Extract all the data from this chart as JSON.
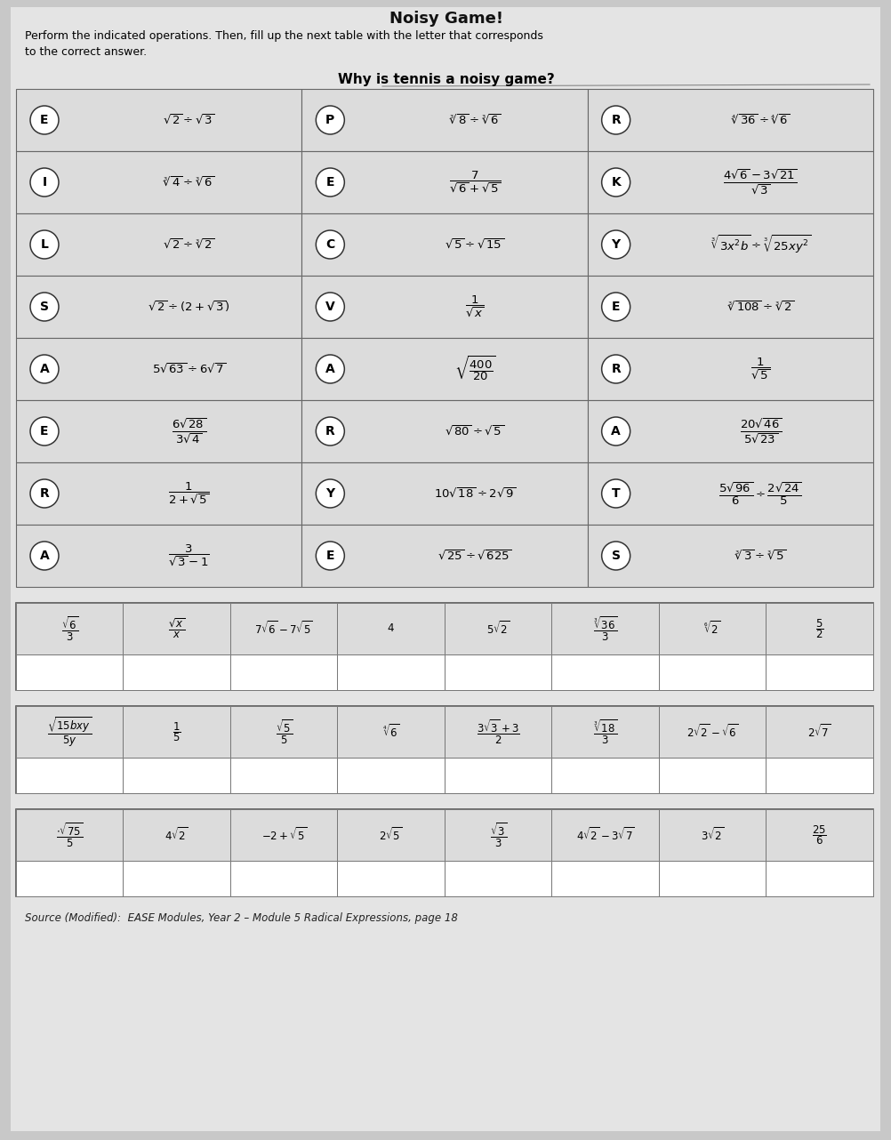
{
  "bg_color": "#c8c8c8",
  "paper_color": "#e4e4e4",
  "title": "Noisy Game!",
  "instruction1": "Perform the indicated operations. Then, fill up the next table with the letter that corresponds",
  "instruction2": "to the correct answer.",
  "question": "Why is tennis a noisy game?",
  "source": "Source (Modified):  EASE Modules, Year 2 – Module 5 Radical Expressions, page 18",
  "rows": [
    [
      {
        "letter": "E",
        "expr": "$\\sqrt{2} \\div \\sqrt{3}$"
      },
      {
        "letter": "P",
        "expr": "$\\sqrt[3]{8} \\div \\sqrt[3]{6}$"
      },
      {
        "letter": "R",
        "expr": "$\\sqrt[4]{36} \\div \\sqrt[4]{6}$"
      }
    ],
    [
      {
        "letter": "I",
        "expr": "$\\sqrt[3]{4} \\div \\sqrt[3]{6}$"
      },
      {
        "letter": "E",
        "expr": "$\\dfrac{7}{\\sqrt{6}+\\sqrt{5}}$"
      },
      {
        "letter": "K",
        "expr": "$\\dfrac{4\\sqrt{6}-3\\sqrt{21}}{\\sqrt{3}}$"
      }
    ],
    [
      {
        "letter": "L",
        "expr": "$\\sqrt{2} \\div \\sqrt[3]{2}$"
      },
      {
        "letter": "C",
        "expr": "$\\sqrt{5} \\div \\sqrt{15}$"
      },
      {
        "letter": "Y",
        "expr": "$\\sqrt[3]{3x^2b} \\div \\sqrt[3]{25xy^2}$"
      }
    ],
    [
      {
        "letter": "S",
        "expr": "$\\sqrt{2} \\div (2+\\sqrt{3})$"
      },
      {
        "letter": "V",
        "expr": "$\\dfrac{1}{\\sqrt{x}}$"
      },
      {
        "letter": "E",
        "expr": "$\\sqrt[3]{108} \\div \\sqrt[3]{2}$"
      }
    ],
    [
      {
        "letter": "A",
        "expr": "$5\\sqrt{63} \\div 6\\sqrt{7}$"
      },
      {
        "letter": "A",
        "expr": "$\\sqrt{\\dfrac{400}{20}}$"
      },
      {
        "letter": "R",
        "expr": "$\\dfrac{1}{\\sqrt{5}}$"
      }
    ],
    [
      {
        "letter": "E",
        "expr": "$\\dfrac{6\\sqrt{28}}{3\\sqrt{4}}$"
      },
      {
        "letter": "R",
        "expr": "$\\sqrt{80} \\div \\sqrt{5}$"
      },
      {
        "letter": "A",
        "expr": "$\\dfrac{20\\sqrt{46}}{5\\sqrt{23}}$"
      }
    ],
    [
      {
        "letter": "R",
        "expr": "$\\dfrac{1}{2+\\sqrt{5}}$"
      },
      {
        "letter": "Y",
        "expr": "$10\\sqrt{18} \\div 2\\sqrt{9}$"
      },
      {
        "letter": "T",
        "expr": "$\\dfrac{5\\sqrt{96}}{6} \\div \\dfrac{2\\sqrt{24}}{5}$"
      }
    ],
    [
      {
        "letter": "A",
        "expr": "$\\dfrac{3}{\\sqrt{3}-1}$"
      },
      {
        "letter": "E",
        "expr": "$\\sqrt{25} \\div \\sqrt{625}$"
      },
      {
        "letter": "S",
        "expr": "$\\sqrt[3]{3} \\div \\sqrt[3]{5}$"
      }
    ]
  ],
  "ans1": [
    "$\\dfrac{\\sqrt{6}}{3}$",
    "$\\dfrac{\\sqrt{x}}{x}$",
    "$7\\sqrt{6}-7\\sqrt{5}$",
    "$4$",
    "$5\\sqrt{2}$",
    "$\\dfrac{\\sqrt[3]{36}}{3}$",
    "$\\sqrt[6]{2}$",
    "$\\dfrac{5}{2}$"
  ],
  "ans2": [
    "$\\dfrac{\\sqrt{15bxy}}{5y}$",
    "$\\dfrac{1}{5}$",
    "$\\dfrac{\\sqrt{5}}{5}$",
    "$\\sqrt[4]{6}$",
    "$\\dfrac{3\\sqrt{3}+3}{2}$",
    "$\\dfrac{\\sqrt[3]{18}}{3}$",
    "$2\\sqrt{2}-\\sqrt{6}$",
    "$2\\sqrt{7}$"
  ],
  "ans3": [
    "$\\dfrac{\\cdot\\sqrt{75}}{5}$",
    "$4\\sqrt{2}$",
    "$-2+\\sqrt{5}$",
    "$2\\sqrt{5}$",
    "$\\dfrac{\\sqrt{3}}{3}$",
    "$4\\sqrt{2}-3\\sqrt{7}$",
    "$3\\sqrt{2}$",
    "$\\dfrac{25}{6}$"
  ]
}
